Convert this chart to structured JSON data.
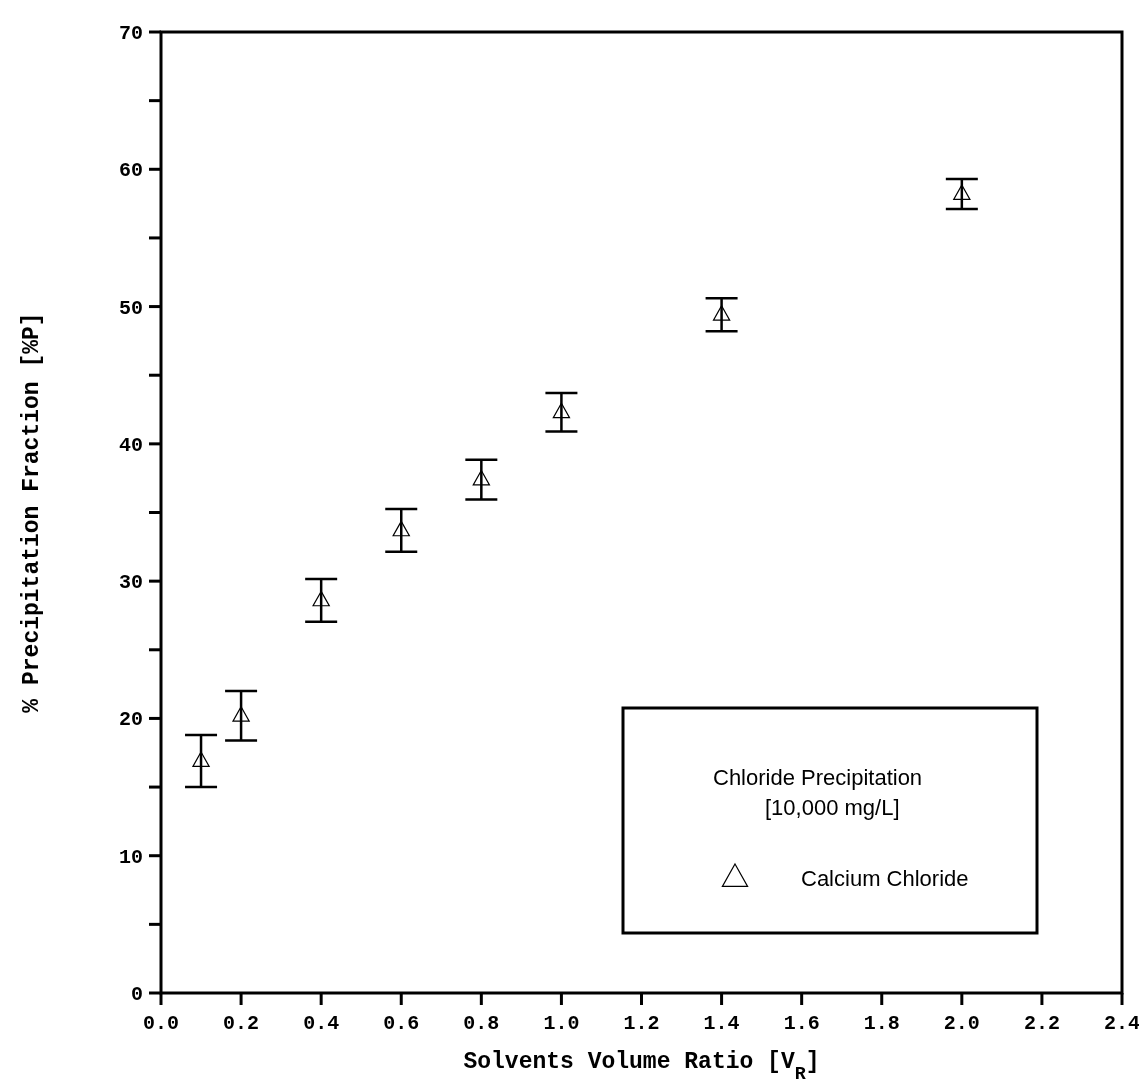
{
  "chart_data": {
    "type": "scatter",
    "xlabel": "Solvents Volume Ratio [V$_{R}$]",
    "ylabel": "% Precipitation Fraction [%P]",
    "legend_title": "Chloride Precipitation\n[10,000 mg/L]",
    "legend": "bottom right",
    "marker": "triangle",
    "grid": false,
    "x": [
      0.1,
      0.2,
      0.4,
      0.6,
      0.8,
      1.0,
      1.4,
      2.0
    ],
    "series": [
      {
        "name": "Calcium Chloride",
        "color": "#000000",
        "values": [
          16.9,
          20.2,
          28.6,
          33.7,
          37.4,
          42.3,
          49.4,
          58.2
        ],
        "errors": [
          1.9,
          1.8,
          1.55,
          1.55,
          1.45,
          1.4,
          1.2,
          1.1
        ]
      }
    ],
    "xlim": [
      0,
      2.4
    ],
    "xticks": [
      {
        "value": 0,
        "label": "0.0"
      },
      0.2,
      0.4,
      0.6,
      0.8,
      {
        "value": 1,
        "label": "1.0"
      },
      1.2,
      1.4,
      1.6,
      1.8,
      {
        "value": 2,
        "label": "2.0"
      },
      2.2,
      2.4
    ],
    "ylim": [
      0,
      70
    ],
    "yticks": [
      0,
      {
        "value": 5,
        "label": null
      },
      10,
      {
        "value": 15,
        "label": null
      },
      20,
      {
        "value": 25,
        "label": null
      },
      30,
      {
        "value": 35,
        "label": null
      },
      40,
      {
        "value": 45,
        "label": null
      },
      50,
      {
        "value": 55,
        "label": null
      },
      60,
      {
        "value": 65,
        "label": null
      },
      70
    ]
  }
}
